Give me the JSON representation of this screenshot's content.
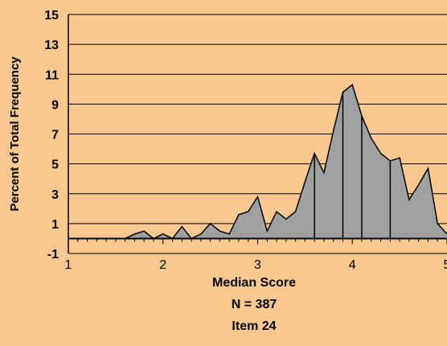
{
  "chart_data": {
    "type": "area",
    "xlabel": "Median Score",
    "ylabel": "Percent of Total Frequency",
    "caption_lines": [
      "Median Score",
      "N = 387",
      "Item 24"
    ],
    "xlim": [
      1,
      5
    ],
    "ylim": [
      -1,
      15
    ],
    "x_ticks": [
      "1",
      "2",
      "3",
      "4",
      "5"
    ],
    "y_ticks": [
      "-1",
      "1",
      "3",
      "5",
      "7",
      "9",
      "11",
      "13",
      "15"
    ],
    "grid": true,
    "x": [
      1.0,
      1.1,
      1.2,
      1.3,
      1.4,
      1.5,
      1.6,
      1.7,
      1.8,
      1.9,
      2.0,
      2.1,
      2.2,
      2.3,
      2.4,
      2.5,
      2.6,
      2.7,
      2.8,
      2.9,
      3.0,
      3.1,
      3.2,
      3.3,
      3.4,
      3.5,
      3.6,
      3.7,
      3.8,
      3.9,
      4.0,
      4.1,
      4.2,
      4.3,
      4.4,
      4.5,
      4.6,
      4.7,
      4.8,
      4.9,
      5.0
    ],
    "values": [
      0,
      0,
      0,
      0,
      0,
      0,
      0,
      0.3,
      0.5,
      0,
      0.3,
      0,
      0.8,
      0,
      0.3,
      1.0,
      0.5,
      0.3,
      1.6,
      1.8,
      2.8,
      0.5,
      1.8,
      1.3,
      1.8,
      3.8,
      5.7,
      4.4,
      7.2,
      9.8,
      10.3,
      8.2,
      6.7,
      5.7,
      5.2,
      5.4,
      2.6,
      3.6,
      4.7,
      1.0,
      0.3
    ],
    "vertical_lines_x": [
      3.6,
      3.9,
      4.1,
      4.4
    ],
    "fill_color": "#A0A0A0",
    "line_color": "#000000",
    "grid_color": "#000000",
    "background_color": "#FAC890"
  }
}
